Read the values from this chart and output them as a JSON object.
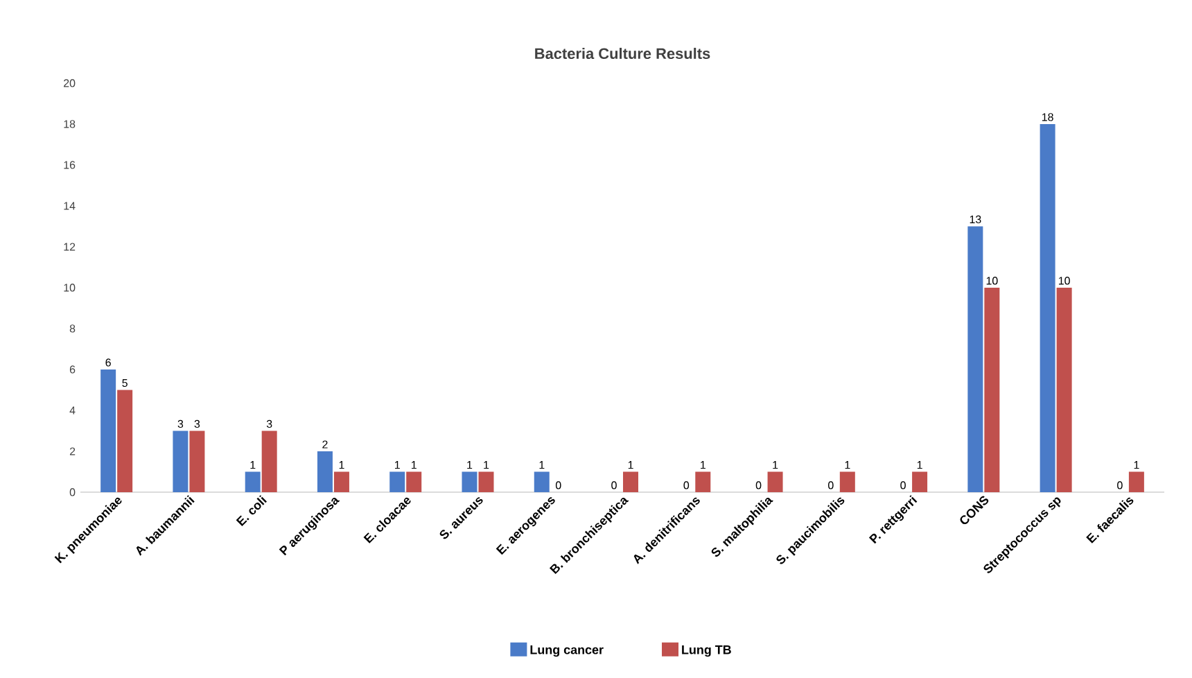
{
  "chart_data": {
    "type": "bar",
    "title": "Bacteria Culture Results",
    "categories": [
      "K. pneumoniae",
      "A. baumannii",
      "E. coli",
      "P aeruginosa",
      "E. cloacae",
      "S. aureus",
      "E. aerogenes",
      "B. bronchiseptica",
      "A. denitrificans",
      "S. maltophilia",
      "S. paucimobilis",
      "P. rettgerri",
      "CONS",
      "Streptococcus sp",
      "E. faecalis"
    ],
    "series": [
      {
        "name": "Lung cancer",
        "color": "#4a7bc8",
        "values": [
          6,
          3,
          1,
          2,
          1,
          1,
          1,
          0,
          0,
          0,
          0,
          0,
          13,
          18,
          0
        ]
      },
      {
        "name": "Lung TB",
        "color": "#c0504d",
        "values": [
          5,
          3,
          3,
          1,
          1,
          1,
          0,
          1,
          1,
          1,
          1,
          1,
          10,
          10,
          1
        ]
      }
    ],
    "ylim": [
      0,
      20
    ],
    "yticks": [
      0,
      2,
      4,
      6,
      8,
      10,
      12,
      14,
      16,
      18,
      20
    ],
    "data_labels": true,
    "legend": "bottom"
  }
}
